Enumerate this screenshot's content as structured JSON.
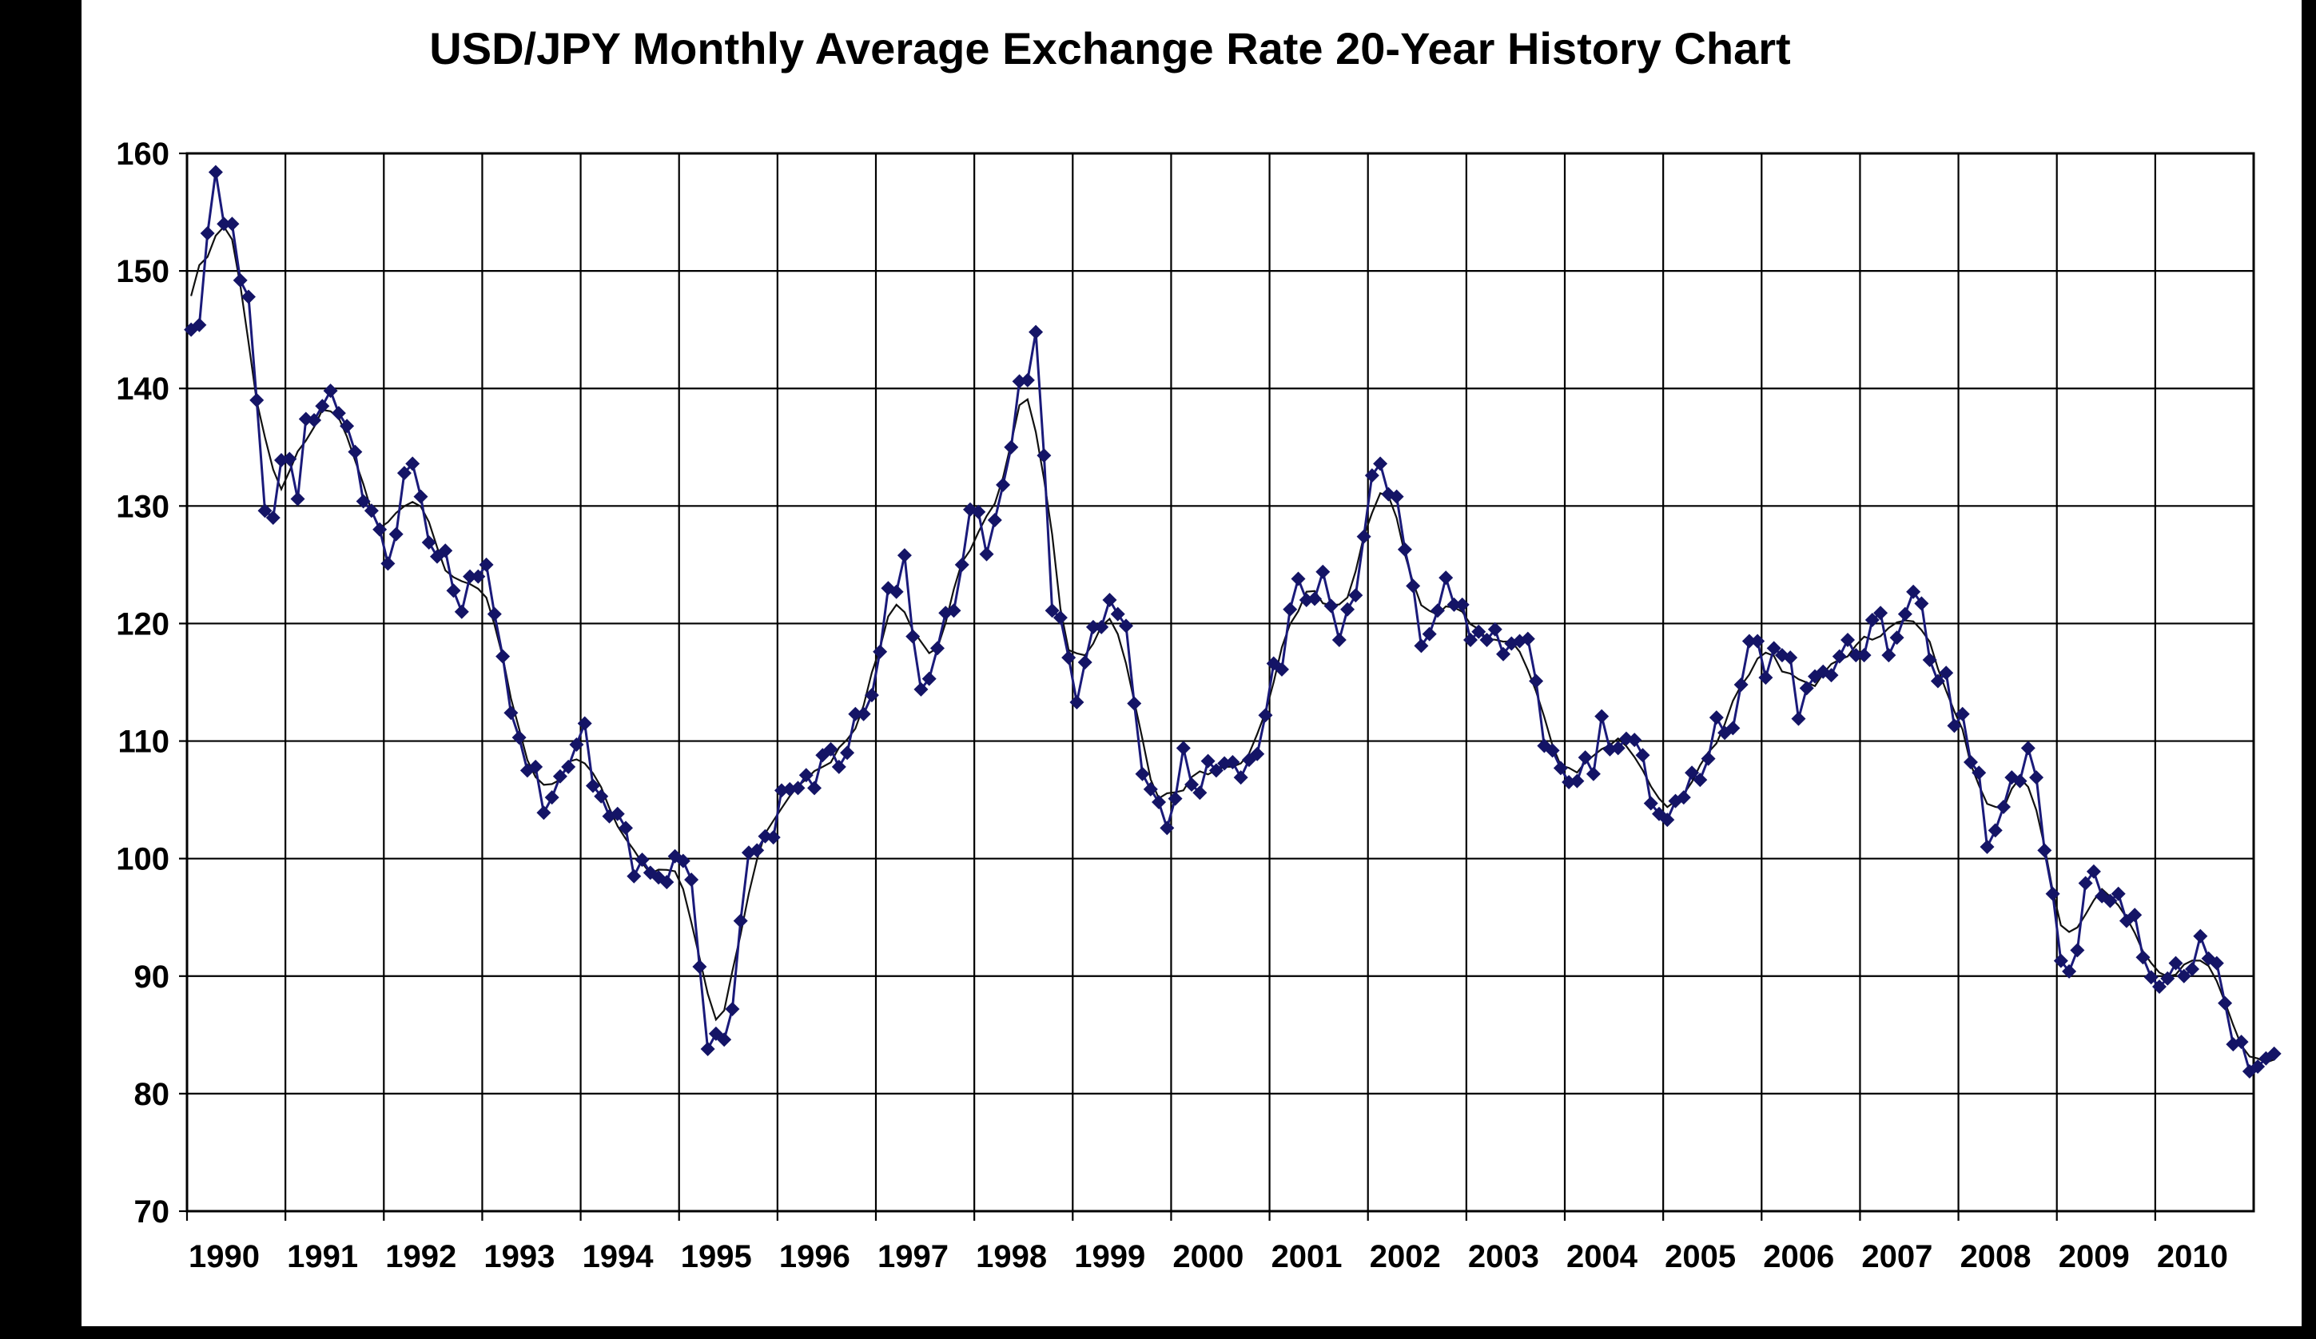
{
  "chart_data": {
    "type": "line",
    "title": "USD/JPY Monthly Average Exchange Rate 20-Year History Chart",
    "xlabel": "",
    "ylabel": "",
    "xlim": [
      1990,
      2011
    ],
    "ylim": [
      70,
      160
    ],
    "x_ticks": [
      "1990",
      "1991",
      "1992",
      "1993",
      "1994",
      "1995",
      "1996",
      "1997",
      "1998",
      "1999",
      "2000",
      "2001",
      "2002",
      "2003",
      "2004",
      "2005",
      "2006",
      "2007",
      "2008",
      "2009",
      "2010"
    ],
    "y_ticks": [
      "70",
      "80",
      "90",
      "100",
      "110",
      "120",
      "130",
      "140",
      "150",
      "160"
    ],
    "grid": true,
    "legend": false,
    "colors": {
      "series": "#1a1a7a",
      "marker": "#141466",
      "trend": "#111111",
      "grid": "#000000"
    },
    "series": [
      {
        "marker": "diamond",
        "start": "1990-01",
        "frequency": "monthly",
        "values": [
          145.0,
          145.4,
          153.2,
          158.4,
          154.0,
          154.0,
          149.2,
          147.8,
          139.0,
          129.6,
          129.0,
          133.9,
          134.0,
          130.6,
          137.4,
          137.3,
          138.5,
          139.8,
          137.9,
          136.8,
          134.6,
          130.4,
          129.6,
          128.0,
          125.1,
          127.6,
          132.8,
          133.6,
          130.8,
          126.9,
          125.7,
          126.2,
          122.8,
          121.0,
          124.0,
          124.0,
          125.0,
          120.8,
          117.2,
          112.4,
          110.3,
          107.5,
          107.8,
          103.9,
          105.2,
          107.0,
          107.8,
          109.7,
          111.5,
          106.2,
          105.3,
          103.6,
          103.8,
          102.6,
          98.5,
          99.9,
          98.8,
          98.4,
          98.0,
          100.2,
          99.8,
          98.2,
          90.8,
          83.8,
          85.1,
          84.6,
          87.2,
          94.7,
          100.5,
          100.7,
          101.9,
          101.8,
          105.8,
          105.9,
          106.0,
          107.1,
          106.0,
          108.8,
          109.3,
          107.8,
          109.0,
          112.3,
          112.3,
          113.9,
          117.6,
          123.0,
          122.7,
          125.8,
          118.9,
          114.4,
          115.3,
          117.9,
          120.9,
          121.1,
          125.0,
          129.7,
          129.5,
          125.9,
          128.8,
          131.8,
          135.0,
          140.6,
          140.7,
          144.8,
          134.3,
          121.1,
          120.5,
          117.1,
          113.3,
          116.7,
          119.7,
          119.7,
          122.0,
          120.8,
          119.8,
          113.2,
          107.2,
          105.9,
          104.8,
          102.6,
          105.1,
          109.4,
          106.3,
          105.6,
          108.3,
          107.5,
          108.1,
          108.2,
          106.9,
          108.4,
          108.9,
          112.2,
          116.6,
          116.1,
          121.2,
          123.8,
          122.0,
          122.1,
          124.4,
          121.5,
          118.6,
          121.2,
          122.4,
          127.4,
          132.6,
          133.6,
          131.0,
          130.8,
          126.3,
          123.2,
          118.1,
          119.1,
          121.1,
          123.9,
          121.6,
          121.6,
          118.6,
          119.3,
          118.6,
          119.5,
          117.4,
          118.3,
          118.5,
          118.7,
          115.1,
          109.6,
          109.2,
          107.7,
          106.5,
          106.6,
          108.6,
          107.2,
          112.1,
          109.3,
          109.4,
          110.2,
          110.1,
          108.8,
          104.7,
          103.8,
          103.3,
          104.9,
          105.2,
          107.3,
          106.7,
          108.5,
          112.0,
          110.7,
          111.1,
          114.8,
          118.5,
          118.5,
          115.4,
          117.9,
          117.3,
          117.1,
          111.9,
          114.5,
          115.5,
          115.9,
          115.6,
          117.2,
          118.6,
          117.3,
          117.3,
          120.3,
          120.9,
          117.3,
          118.8,
          120.8,
          122.7,
          121.7,
          116.9,
          115.1,
          115.8,
          111.3,
          112.3,
          108.2,
          107.3,
          101.0,
          102.4,
          104.4,
          106.9,
          106.6,
          109.4,
          106.9,
          100.7,
          97.0,
          91.3,
          90.4,
          92.2,
          97.9,
          98.9,
          96.8,
          96.4,
          97.0,
          94.7,
          95.2,
          91.6,
          89.9,
          89.1,
          89.8,
          91.1,
          90.0,
          90.6,
          93.4,
          91.5,
          91.1,
          87.7,
          84.2,
          84.4,
          81.9,
          82.3,
          83.0,
          83.4
        ]
      }
    ]
  }
}
